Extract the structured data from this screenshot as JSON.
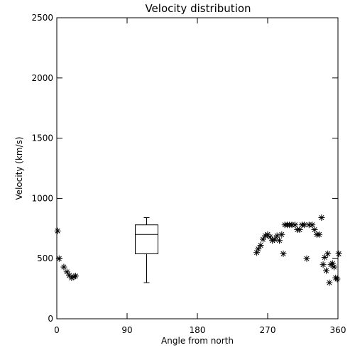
{
  "chart_data": {
    "type": "scatter",
    "title": "Velocity distribution",
    "xlabel": "Angle from north",
    "ylabel": "Velocity (km/s)",
    "xlim": [
      0,
      360
    ],
    "ylim": [
      0,
      2500
    ],
    "xticks": [
      "0",
      "90",
      "180",
      "270",
      "360"
    ],
    "yticks": [
      "0",
      "500",
      "1000",
      "1500",
      "2000",
      "2500"
    ],
    "xtick_values": [
      0,
      90,
      180,
      270,
      360
    ],
    "ytick_values": [
      0,
      500,
      1000,
      1500,
      2000,
      2500
    ],
    "grid": false,
    "marker": "asterisk",
    "points": [
      [
        1,
        730
      ],
      [
        3,
        500
      ],
      [
        9,
        430
      ],
      [
        13,
        390
      ],
      [
        16,
        360
      ],
      [
        19,
        340
      ],
      [
        22,
        350
      ],
      [
        24,
        355
      ],
      [
        256,
        550
      ],
      [
        258,
        580
      ],
      [
        261,
        610
      ],
      [
        264,
        660
      ],
      [
        267,
        690
      ],
      [
        270,
        700
      ],
      [
        273,
        680
      ],
      [
        276,
        650
      ],
      [
        279,
        660
      ],
      [
        282,
        690
      ],
      [
        285,
        650
      ],
      [
        288,
        700
      ],
      [
        290,
        540
      ],
      [
        292,
        780
      ],
      [
        295,
        780
      ],
      [
        298,
        780
      ],
      [
        301,
        780
      ],
      [
        305,
        780
      ],
      [
        308,
        740
      ],
      [
        311,
        740
      ],
      [
        314,
        780
      ],
      [
        317,
        780
      ],
      [
        320,
        500
      ],
      [
        323,
        780
      ],
      [
        327,
        780
      ],
      [
        330,
        740
      ],
      [
        333,
        700
      ],
      [
        336,
        700
      ],
      [
        339,
        840
      ],
      [
        341,
        450
      ],
      [
        343,
        510
      ],
      [
        345,
        400
      ],
      [
        347,
        540
      ],
      [
        349,
        300
      ],
      [
        351,
        450
      ],
      [
        353,
        460
      ],
      [
        355,
        430
      ],
      [
        357,
        340
      ],
      [
        359,
        330
      ],
      [
        361,
        540
      ]
    ],
    "boxplot": {
      "x": 115,
      "min": 300,
      "q1": 540,
      "median": 700,
      "q3": 780,
      "max": 840
    }
  }
}
